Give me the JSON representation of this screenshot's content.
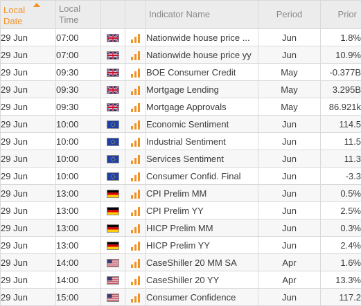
{
  "header": {
    "date_line1": "Local",
    "date_line2": "Date",
    "time_line1": "Local",
    "time_line2": "Time",
    "indicator": "Indicator Name",
    "period": "Period",
    "prior": "Prior"
  },
  "rows": [
    {
      "date": "29 Jun",
      "time": "07:00",
      "country": "uk-flag",
      "name": "Nationwide house price ...",
      "period": "Jun",
      "prior": "1.8%"
    },
    {
      "date": "29 Jun",
      "time": "07:00",
      "country": "uk-flag",
      "name": "Nationwide house price yy",
      "period": "Jun",
      "prior": "10.9%"
    },
    {
      "date": "29 Jun",
      "time": "09:30",
      "country": "uk-flag",
      "name": "BOE Consumer Credit",
      "period": "May",
      "prior": "-0.377B"
    },
    {
      "date": "29 Jun",
      "time": "09:30",
      "country": "uk-flag",
      "name": "Mortgage Lending",
      "period": "May",
      "prior": "3.295B"
    },
    {
      "date": "29 Jun",
      "time": "09:30",
      "country": "uk-flag",
      "name": "Mortgage Approvals",
      "period": "May",
      "prior": "86.921k"
    },
    {
      "date": "29 Jun",
      "time": "10:00",
      "country": "eu-flag",
      "name": "Economic Sentiment",
      "period": "Jun",
      "prior": "114.5"
    },
    {
      "date": "29 Jun",
      "time": "10:00",
      "country": "eu-flag",
      "name": "Industrial Sentiment",
      "period": "Jun",
      "prior": "11.5"
    },
    {
      "date": "29 Jun",
      "time": "10:00",
      "country": "eu-flag",
      "name": "Services Sentiment",
      "period": "Jun",
      "prior": "11.3"
    },
    {
      "date": "29 Jun",
      "time": "10:00",
      "country": "eu-flag",
      "name": "Consumer Confid. Final",
      "period": "Jun",
      "prior": "-3.3"
    },
    {
      "date": "29 Jun",
      "time": "13:00",
      "country": "de-flag",
      "name": "CPI Prelim MM",
      "period": "Jun",
      "prior": "0.5%"
    },
    {
      "date": "29 Jun",
      "time": "13:00",
      "country": "de-flag",
      "name": "CPI Prelim YY",
      "period": "Jun",
      "prior": "2.5%"
    },
    {
      "date": "29 Jun",
      "time": "13:00",
      "country": "de-flag",
      "name": "HICP Prelim MM",
      "period": "Jun",
      "prior": "0.3%"
    },
    {
      "date": "29 Jun",
      "time": "13:00",
      "country": "de-flag",
      "name": "HICP Prelim YY",
      "period": "Jun",
      "prior": "2.4%"
    },
    {
      "date": "29 Jun",
      "time": "14:00",
      "country": "us-flag",
      "name": "CaseShiller 20 MM SA",
      "period": "Apr",
      "prior": "1.6%"
    },
    {
      "date": "29 Jun",
      "time": "14:00",
      "country": "us-flag",
      "name": "CaseShiller 20 YY",
      "period": "Apr",
      "prior": "13.3%"
    },
    {
      "date": "29 Jun",
      "time": "15:00",
      "country": "us-flag",
      "name": "Consumer Confidence",
      "period": "Jun",
      "prior": "117.2"
    }
  ],
  "importance_icon": "importance-bars-icon",
  "colors": {
    "accent": "#f29225",
    "header_bg": "#ececec",
    "border": "#d9d9d9"
  }
}
